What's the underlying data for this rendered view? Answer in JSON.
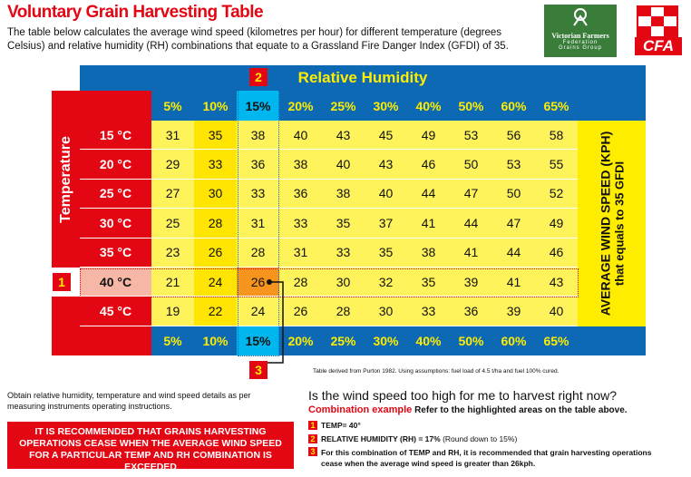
{
  "header": {
    "title": "Voluntary Grain Harvesting Table",
    "description": "The table below calculates the average wind speed (kilometres per hour) for different temperature (degrees Celsius) and relative humidity (RH) combinations that equate to a Grassland Fire Danger Index (GFDI) of 35."
  },
  "logos": {
    "vff": {
      "name": "Victorian Farmers",
      "line2": "Federation",
      "line3": "Grains Group"
    },
    "cfa": "CFA"
  },
  "table": {
    "title": "Relative Humidity",
    "row_axis": "Temperature",
    "columns": [
      "5%",
      "10%",
      "15%",
      "20%",
      "25%",
      "30%",
      "40%",
      "50%",
      "60%",
      "65%"
    ],
    "rows": [
      {
        "label": "15 °C",
        "values": [
          31,
          35,
          38,
          40,
          43,
          45,
          49,
          53,
          56,
          58
        ]
      },
      {
        "label": "20 °C",
        "values": [
          29,
          33,
          36,
          38,
          40,
          43,
          46,
          50,
          53,
          55
        ]
      },
      {
        "label": "25 °C",
        "values": [
          27,
          30,
          33,
          36,
          38,
          40,
          44,
          47,
          50,
          52
        ]
      },
      {
        "label": "30 °C",
        "values": [
          25,
          28,
          31,
          33,
          35,
          37,
          41,
          44,
          47,
          49
        ]
      },
      {
        "label": "35 °C",
        "values": [
          23,
          26,
          28,
          31,
          33,
          35,
          38,
          41,
          44,
          46
        ]
      },
      {
        "label": "40 °C",
        "values": [
          21,
          24,
          26,
          28,
          30,
          32,
          35,
          39,
          41,
          43
        ]
      },
      {
        "label": "45 °C",
        "values": [
          19,
          22,
          24,
          26,
          28,
          30,
          33,
          36,
          39,
          40
        ]
      }
    ],
    "side_label": "AVERAGE WIND SPEED (KPH)",
    "side_sublabel": "that equals to 35 GFDI",
    "markers": [
      "1",
      "2",
      "3"
    ],
    "source": "Table derived from Purton 1982. Using assumptions: fuel load of 4.5 t/ha and fuel 100% cured."
  },
  "instructions": "Obtain relative humidity, temperature and wind speed details as per measuring instruments operating instructions.",
  "warning": "IT IS RECOMMENDED THAT GRAINS HARVESTING OPERATIONS CEASE WHEN THE AVERAGE WIND SPEED FOR A PARTICULAR TEMP AND RH COMBINATION IS EXCEEDED",
  "example": {
    "question": "Is the wind speed too high for me to harvest right now?",
    "title": "Combination example",
    "intro": "Refer to the highlighted areas on the table above.",
    "steps": [
      {
        "marker": "1",
        "text": "TEMP= 40°"
      },
      {
        "marker": "2",
        "text": "RELATIVE HUMIDITY (RH) = 17%",
        "note": "(Round down to 15%)"
      },
      {
        "marker": "3",
        "text": "For this combination of TEMP and RH, it is recommended that grain harvesting operations cease when the average wind speed is greater than 26kph."
      }
    ]
  }
}
